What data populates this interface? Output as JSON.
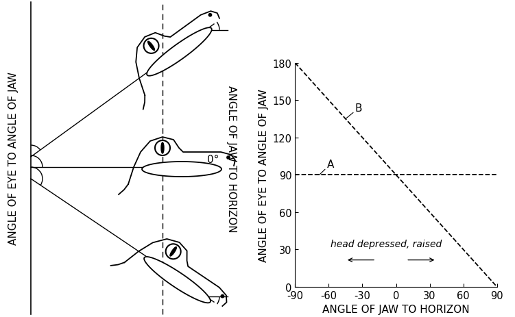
{
  "diagram": {
    "left_label": "ANGLE OF EYE TO ANGLE OF JAW",
    "right_label": "ANGLE OF JAW TO HORIZON",
    "level_label": "0°"
  },
  "chart_data": {
    "type": "line",
    "x": [
      -90,
      90
    ],
    "series": [
      {
        "name": "A",
        "color": "#000000",
        "line_style": "dashed",
        "values": [
          90,
          90
        ]
      },
      {
        "name": "B",
        "color": "#000000",
        "line_style": "dashed",
        "values": [
          180,
          0
        ]
      }
    ],
    "x_label": "ANGLE OF JAW TO HORIZON",
    "y_label": "ANGLE OF EYE TO ANGLE OF JAW",
    "annotations": [
      "head depressed, raised"
    ],
    "xlim": [
      -90,
      90
    ],
    "ylim": [
      0,
      180
    ],
    "xticks": [
      -90,
      -60,
      -30,
      0,
      30,
      60,
      90
    ],
    "yticks": [
      0,
      30,
      60,
      90,
      120,
      150,
      180
    ]
  }
}
